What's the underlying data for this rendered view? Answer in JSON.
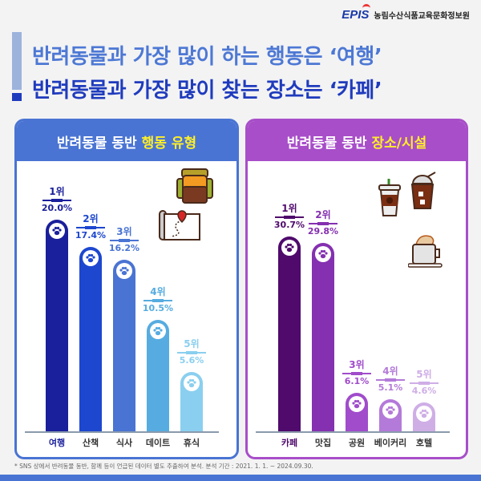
{
  "header": {
    "logo_mark": "EPIS",
    "org_name": "농림수산식품교육문화정보원",
    "headline_1": "반려동물과 가장 많이 하는 행동은 ‘여행’",
    "headline_2": "반려동물과 가장 많이 찾는 장소는 ‘카페’"
  },
  "left_panel": {
    "title_prefix": "반려동물 동반",
    "title_highlight": "행동 유형",
    "icons": [
      "backpack-icon",
      "map-icon"
    ]
  },
  "right_panel": {
    "title_prefix": "반려동물 동반",
    "title_highlight": "장소/시설",
    "icons": [
      "takeout-coffee-icon",
      "iced-drink-icon",
      "latte-mug-icon"
    ]
  },
  "footnote": "* SNS 상에서 반려동물 동반, 함께 등이 언급된 데이터 별도 추출하여 분석. 분석 기간 : 2021. 1. 1. ~ 2024.09.30.",
  "colors": {
    "left_accent": "#4a74d3",
    "right_accent": "#a84ec9",
    "highlight": "#ffef28",
    "left_bars": [
      "#1a1f9b",
      "#1d47cf",
      "#4a74d3",
      "#56ace0",
      "#8acfef"
    ],
    "right_bars": [
      "#4f0a6c",
      "#8430b0",
      "#a04ccb",
      "#b47ad9",
      "#cfaee6"
    ]
  },
  "chart_data": [
    {
      "type": "bar",
      "title": "반려동물 동반 행동 유형",
      "categories": [
        "여행",
        "산책",
        "식사",
        "데이트",
        "휴식"
      ],
      "ranks": [
        "1위",
        "2위",
        "3위",
        "4위",
        "5위"
      ],
      "values": [
        20.0,
        17.4,
        16.2,
        10.5,
        5.6
      ],
      "value_labels": [
        "20.0%",
        "17.4%",
        "16.2%",
        "10.5%",
        "5.6%"
      ],
      "unit": "%",
      "xlabel": "",
      "ylabel": "",
      "grid": false
    },
    {
      "type": "bar",
      "title": "반려동물 동반 장소/시설",
      "categories": [
        "카페",
        "맛집",
        "공원",
        "베이커리",
        "호텔"
      ],
      "ranks": [
        "1위",
        "2위",
        "3위",
        "4위",
        "5위"
      ],
      "values": [
        30.7,
        29.8,
        6.1,
        5.1,
        4.6
      ],
      "value_labels": [
        "30.7%",
        "29.8%",
        "6.1%",
        "5.1%",
        "4.6%"
      ],
      "unit": "%",
      "xlabel": "",
      "ylabel": "",
      "grid": false
    }
  ]
}
